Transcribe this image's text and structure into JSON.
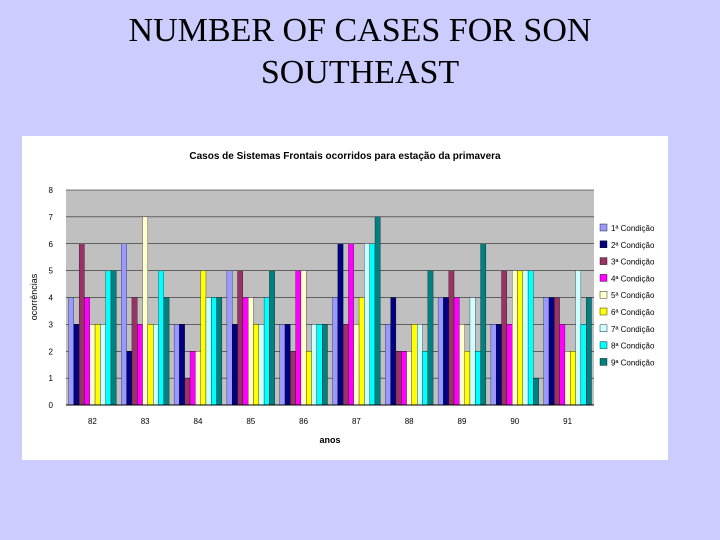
{
  "slide": {
    "title_line1": "NUMBER OF CASES FOR  SON",
    "title_line2": "SOUTHEAST"
  },
  "chart_data": {
    "type": "bar",
    "title": "Casos de Sistemas Frontais ocorridos para estação da primavera",
    "xlabel": "anos",
    "ylabel": "ocorrências",
    "ylim": [
      0,
      8
    ],
    "yticks": [
      0,
      1,
      2,
      3,
      4,
      5,
      6,
      7,
      8
    ],
    "grid": true,
    "legend_position": "right",
    "plot_background": "#c0c0c0",
    "categories": [
      "82",
      "83",
      "84",
      "85",
      "86",
      "87",
      "88",
      "89",
      "90",
      "91"
    ],
    "series": [
      {
        "name": "1ª Condição",
        "color": "#9999ff",
        "values": [
          4,
          6,
          3,
          5,
          3,
          4,
          3,
          4,
          3,
          4
        ]
      },
      {
        "name": "2ª Condição",
        "color": "#000080",
        "values": [
          3,
          2,
          3,
          3,
          3,
          6,
          4,
          4,
          3,
          4
        ]
      },
      {
        "name": "3ª Condição",
        "color": "#993366",
        "values": [
          6,
          4,
          1,
          5,
          2,
          3,
          2,
          5,
          5,
          4
        ]
      },
      {
        "name": "4ª Condição",
        "color": "#ff00ff",
        "values": [
          4,
          3,
          2,
          4,
          5,
          6,
          2,
          4,
          3,
          3
        ]
      },
      {
        "name": "5ª Condição",
        "color": "#ffffcc",
        "values": [
          3,
          7,
          2,
          4,
          5,
          3,
          2,
          3,
          5,
          2
        ]
      },
      {
        "name": "6ª Condição",
        "color": "#ffff00",
        "values": [
          3,
          3,
          5,
          3,
          2,
          4,
          3,
          2,
          5,
          2
        ]
      },
      {
        "name": "7ª Condição",
        "color": "#ccffff",
        "values": [
          3,
          3,
          4,
          3,
          3,
          6,
          3,
          4,
          5,
          5
        ]
      },
      {
        "name": "8ª Condição",
        "color": "#00ffff",
        "values": [
          5,
          5,
          4,
          4,
          3,
          6,
          2,
          2,
          5,
          3
        ]
      },
      {
        "name": "9ª Condição",
        "color": "#008080",
        "values": [
          5,
          4,
          4,
          5,
          3,
          7,
          5,
          6,
          1,
          4
        ]
      }
    ]
  }
}
